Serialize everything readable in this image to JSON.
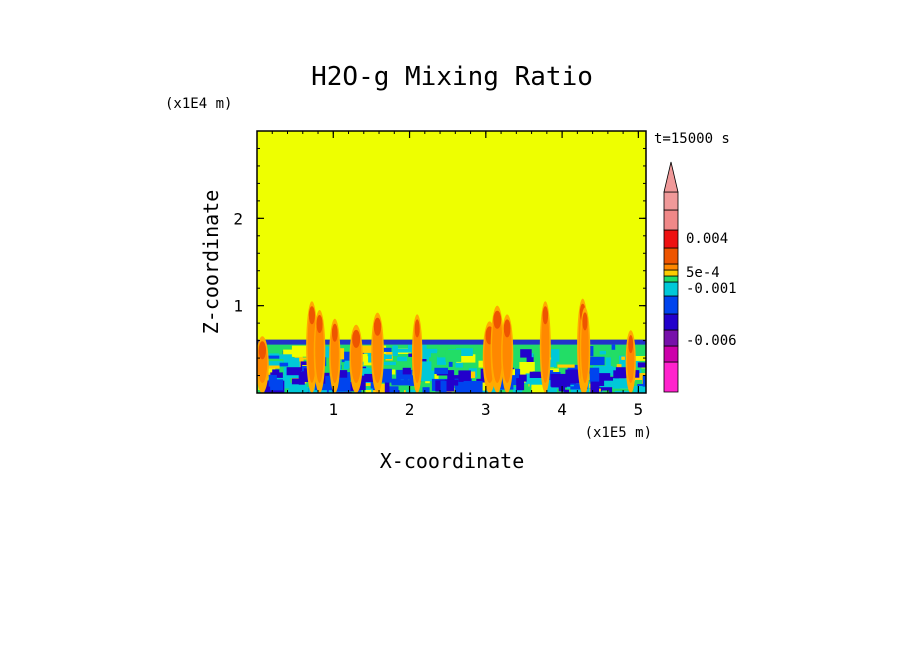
{
  "chart_data": {
    "type": "heatmap",
    "title": "H2O-g Mixing Ratio",
    "xlabel": "X-coordinate",
    "ylabel": "Z-coordinate",
    "x_scale_label": "(x1E5 m)",
    "y_scale_label": "(x1E4 m)",
    "time_label": "t=15000 s",
    "xlim": [
      0,
      5.1
    ],
    "ylim": [
      0,
      3
    ],
    "x_ticks": [
      1,
      2,
      3,
      4,
      5
    ],
    "y_ticks": [
      1,
      2
    ],
    "x_tick_labels": [
      "1",
      "2",
      "3",
      "4",
      "5"
    ],
    "y_tick_labels": [
      "1",
      "2"
    ],
    "boundary_layer_top": 0.6,
    "background_color": "#eeff00",
    "colorbar": {
      "bands": [
        "#ff22cc",
        "#cc00aa",
        "#7711aa",
        "#2200cc",
        "#0044ee",
        "#00c8d8",
        "#22dd66",
        "#ffcc00",
        "#ff8800",
        "#ee5500",
        "#ee1111",
        "#f08888",
        "#f09999"
      ],
      "labels": [
        "0.004",
        "5e-4",
        "-0.001",
        "-0.006"
      ],
      "label_values": [
        0.004,
        0.0005,
        -0.001,
        -0.006
      ]
    },
    "plumes": [
      {
        "x": 0.07,
        "top": 0.65
      },
      {
        "x": 0.72,
        "top": 1.05
      },
      {
        "x": 0.82,
        "top": 0.95
      },
      {
        "x": 1.02,
        "top": 0.85
      },
      {
        "x": 1.3,
        "top": 0.78
      },
      {
        "x": 1.58,
        "top": 0.92
      },
      {
        "x": 2.1,
        "top": 0.9
      },
      {
        "x": 3.05,
        "top": 0.82
      },
      {
        "x": 3.15,
        "top": 1.0
      },
      {
        "x": 3.28,
        "top": 0.9
      },
      {
        "x": 3.78,
        "top": 1.05
      },
      {
        "x": 4.27,
        "top": 1.08
      },
      {
        "x": 4.3,
        "top": 0.98
      },
      {
        "x": 4.9,
        "top": 0.72
      }
    ]
  }
}
